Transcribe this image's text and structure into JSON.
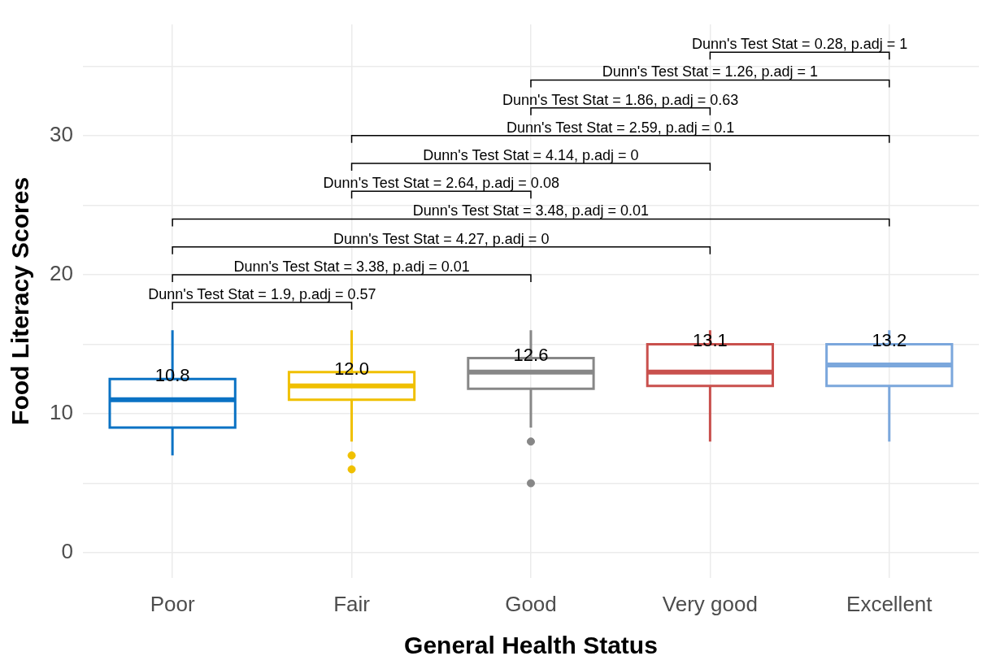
{
  "chart_data": {
    "type": "box",
    "xlabel": "General Health Status",
    "ylabel": "Food Literacy Scores",
    "categories": [
      "Poor",
      "Fair",
      "Good",
      "Very good",
      "Excellent"
    ],
    "colors": [
      "#0a72c4",
      "#f0c000",
      "#878787",
      "#c9504d",
      "#7ba7dc"
    ],
    "boxes": [
      {
        "low": 7,
        "q1": 9,
        "median": 11,
        "q3": 12.5,
        "high": 16
      },
      {
        "low": 8,
        "q1": 11,
        "median": 12,
        "q3": 13,
        "high": 16,
        "outliers": [
          7,
          6
        ]
      },
      {
        "low": 9,
        "q1": 11.8,
        "median": 13,
        "q3": 14,
        "high": 16,
        "outliers": [
          8,
          5
        ]
      },
      {
        "low": 8,
        "q1": 12,
        "median": 13,
        "q3": 15,
        "high": 16
      },
      {
        "low": 8,
        "q1": 12,
        "median": 13.5,
        "q3": 15,
        "high": 16
      }
    ],
    "ylim": [
      -1.8,
      38
    ],
    "yticks": [
      0,
      {
        "value": 5,
        "label": null
      },
      10,
      {
        "value": 15,
        "label": null
      },
      20,
      {
        "value": 25,
        "label": null
      },
      30,
      {
        "value": 35,
        "label": null
      }
    ],
    "grid": true,
    "annotations": [
      {
        "text": "10.8",
        "x": "Poor"
      },
      {
        "text": "12.0",
        "x": "Fair"
      },
      {
        "text": "12.6",
        "x": "Good"
      },
      {
        "text": "13.1",
        "x": "Very good"
      },
      {
        "text": "13.2",
        "x": "Excellent"
      },
      "Dunn's Test Stat = 1.9, p.adj = 0.57",
      "Dunn's Test Stat = 3.38, p.adj = 0.01",
      "Dunn's Test Stat = 4.27, p.adj = 0",
      "Dunn's Test Stat = 3.48, p.adj = 0.01",
      "Dunn's Test Stat = 2.64, p.adj = 0.08",
      "Dunn's Test Stat = 4.14, p.adj = 0",
      "Dunn's Test Stat = 2.59, p.adj = 0.1",
      "Dunn's Test Stat = 1.86, p.adj = 0.63",
      "Dunn's Test Stat = 1.26, p.adj = 1",
      "Dunn's Test Stat = 0.28, p.adj = 1"
    ]
  }
}
